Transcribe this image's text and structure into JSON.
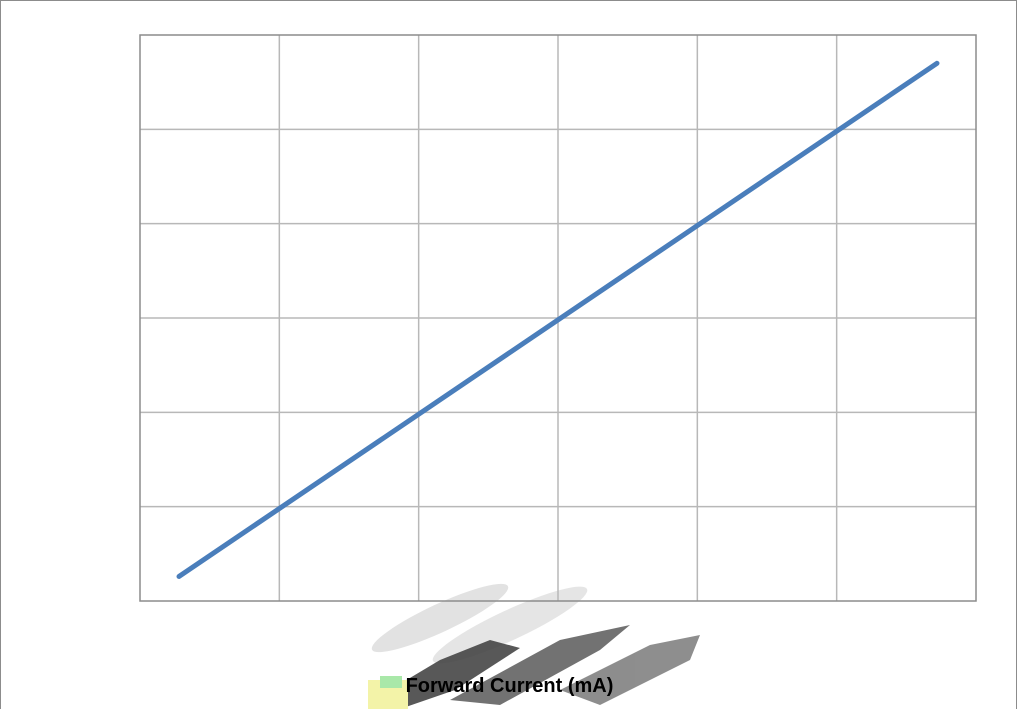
{
  "chart_data": {
    "type": "line",
    "title": "",
    "xlabel": "Forward Current (mA)",
    "ylabel": "",
    "x_tick_labels": [],
    "y_tick_labels": [],
    "grid": true,
    "legend": "none",
    "xlim": [
      0,
      6
    ],
    "ylim": [
      0,
      6
    ],
    "series": [
      {
        "color": "#4a7ebb",
        "x": [
          0.28,
          5.72
        ],
        "y": [
          0.26,
          5.7
        ]
      }
    ],
    "colors": {
      "grid": "#b8b8b8",
      "axis": "#8c8c8c",
      "line": "#4a7ebb"
    }
  }
}
